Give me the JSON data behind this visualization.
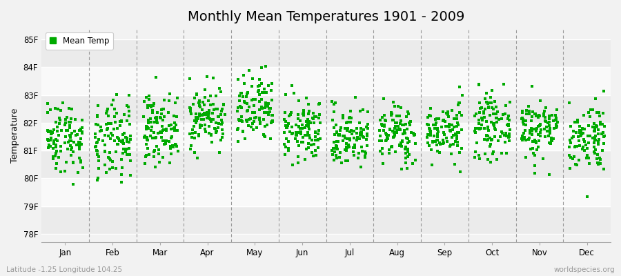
{
  "title": "Monthly Mean Temperatures 1901 - 2009",
  "ylabel": "Temperature",
  "footer_left": "Latitude -1.25 Longitude 104.25",
  "footer_right": "worldspecies.org",
  "legend_label": "Mean Temp",
  "yticks": [
    78,
    79,
    80,
    81,
    82,
    83,
    84,
    85
  ],
  "ytick_labels": [
    "78F",
    "79F",
    "80F",
    "81F",
    "82F",
    "83F",
    "84F",
    "85F"
  ],
  "ylim": [
    77.7,
    85.4
  ],
  "months": [
    "Jan",
    "Feb",
    "Mar",
    "Apr",
    "May",
    "Jun",
    "Jul",
    "Aug",
    "Sep",
    "Oct",
    "Nov",
    "Dec"
  ],
  "marker_color": "#00AA00",
  "marker": "s",
  "marker_size": 2.5,
  "bg_color": "#f2f2f2",
  "band_colors": [
    "#ebebeb",
    "#f9f9f9"
  ],
  "grid_color": "#ffffff",
  "dashed_line_color": "#999999",
  "n_years": 109,
  "seed": 42,
  "mean_temps": [
    81.5,
    81.3,
    81.8,
    82.2,
    82.4,
    81.7,
    81.5,
    81.6,
    81.7,
    81.9,
    81.8,
    81.5
  ],
  "std_temps": [
    0.65,
    0.72,
    0.6,
    0.55,
    0.65,
    0.55,
    0.55,
    0.55,
    0.5,
    0.55,
    0.55,
    0.62
  ],
  "title_fontsize": 14,
  "axis_fontsize": 9,
  "tick_fontsize": 8.5,
  "legend_fontsize": 8.5
}
